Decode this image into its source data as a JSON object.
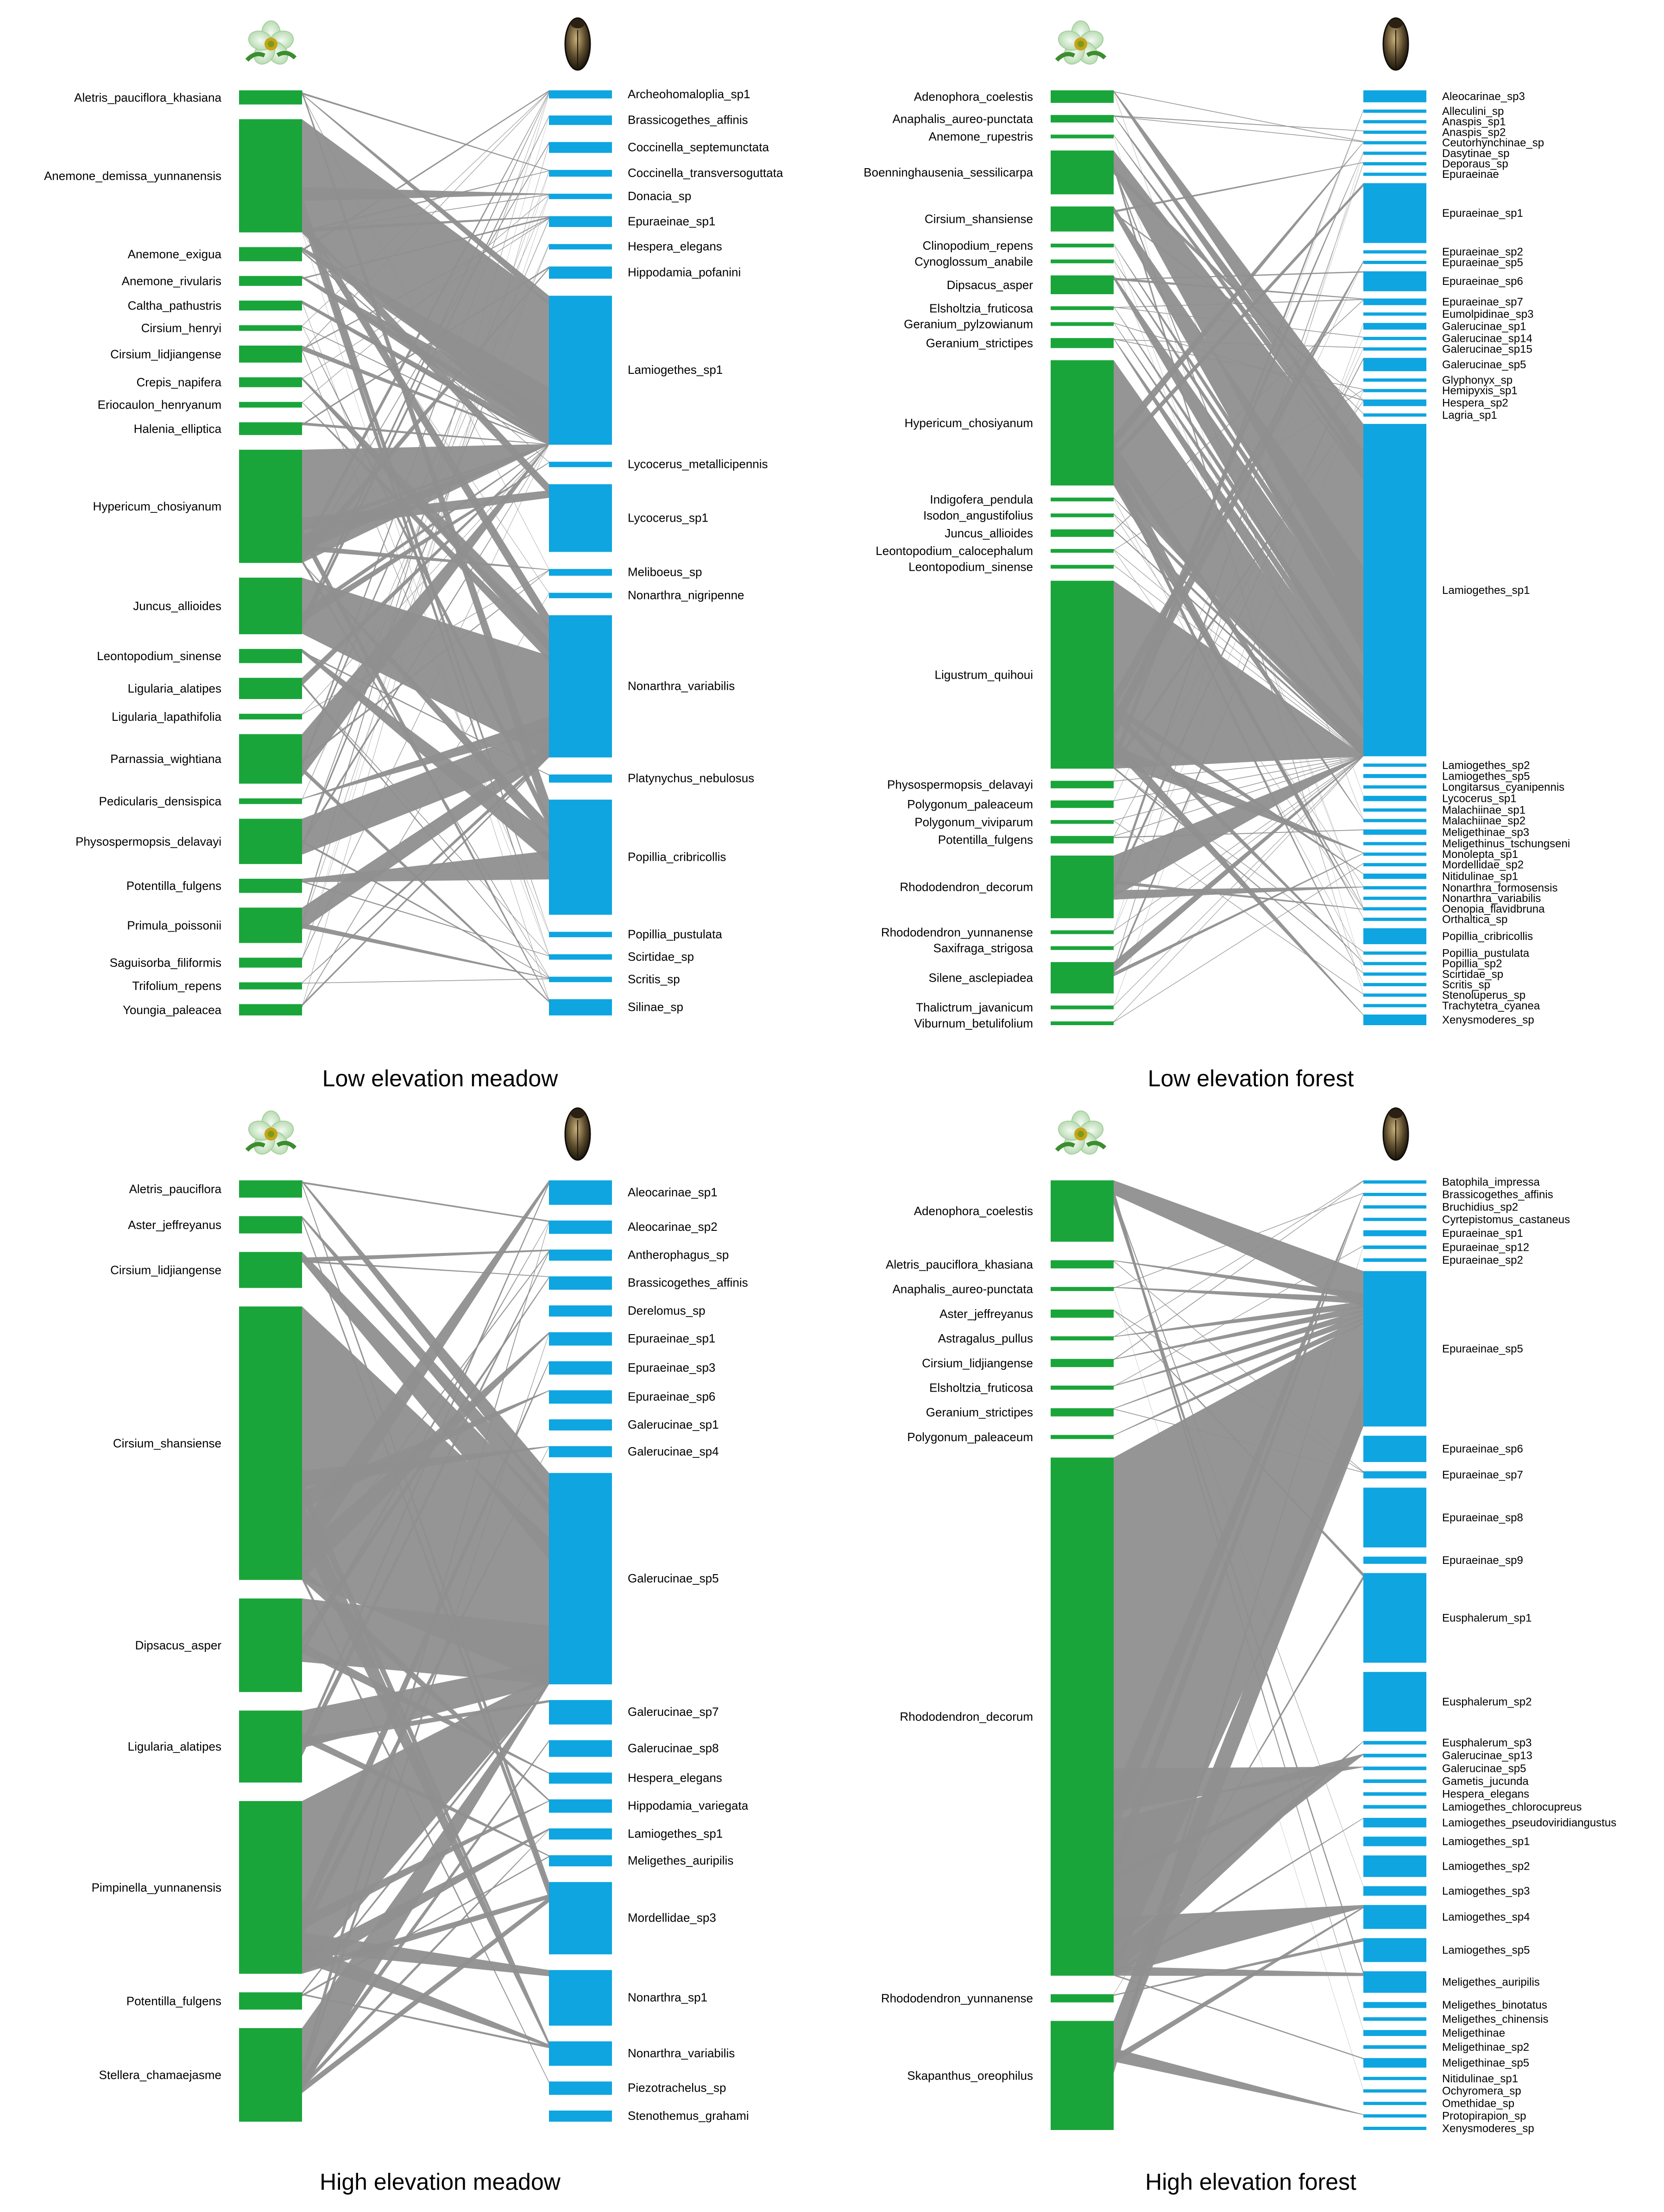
{
  "colors": {
    "plant": "#1aa53a",
    "insect": "#0ea5e0",
    "link": "#8f8f8f"
  },
  "panels": [
    {
      "title": "Low elevation meadow",
      "plants": [
        {
          "name": "Aletris_pauciflora_khasiana",
          "w": 1
        },
        {
          "name": "Anemone_demissa_yunnanensis",
          "w": 8
        },
        {
          "name": "Anemone_exigua",
          "w": 1
        },
        {
          "name": "Anemone_rivularis",
          "w": 0.7
        },
        {
          "name": "Caltha_pathustris",
          "w": 0.7
        },
        {
          "name": "Cirsium_henryi",
          "w": 0.4
        },
        {
          "name": "Cirsium_lidjiangense",
          "w": 1.2
        },
        {
          "name": "Crepis_napifera",
          "w": 0.7
        },
        {
          "name": "Eriocaulon_henryanum",
          "w": 0.4
        },
        {
          "name": "Halenia_elliptica",
          "w": 0.9
        },
        {
          "name": "Hypericum_chosiyanum",
          "w": 8
        },
        {
          "name": "Juncus_allioides",
          "w": 4
        },
        {
          "name": "Leontopodium_sinense",
          "w": 1
        },
        {
          "name": "Ligularia_alatipes",
          "w": 1.5
        },
        {
          "name": "Ligularia_lapathifolia",
          "w": 0.4
        },
        {
          "name": "Parnassia_wightiana",
          "w": 3.5
        },
        {
          "name": "Pedicularis_densispica",
          "w": 0.4
        },
        {
          "name": "Physospermopsis_delavayi",
          "w": 3.2
        },
        {
          "name": "Potentilla_fulgens",
          "w": 1
        },
        {
          "name": "Primula_poissonii",
          "w": 2.5
        },
        {
          "name": "Saguisorba_filiformis",
          "w": 0.7
        },
        {
          "name": "Trifolium_repens",
          "w": 0.5
        },
        {
          "name": "Youngia_paleacea",
          "w": 0.8
        }
      ],
      "insects": [
        {
          "name": "Archeohomaloplia_sp1",
          "w": 0.6
        },
        {
          "name": "Brassicogethes_affinis",
          "w": 0.7
        },
        {
          "name": "Coccinella_septemunctata",
          "w": 0.8
        },
        {
          "name": "Coccinella_transversoguttata",
          "w": 0.5
        },
        {
          "name": "Donacia_sp",
          "w": 0.4
        },
        {
          "name": "Epuraeinae_sp1",
          "w": 0.8
        },
        {
          "name": "Hespera_elegans",
          "w": 0.4
        },
        {
          "name": "Hippodamia_pofanini",
          "w": 0.9
        },
        {
          "name": "Lamiogethes_sp1",
          "w": 11
        },
        {
          "name": "Lycocerus_metallicipennis",
          "w": 0.4
        },
        {
          "name": "Lycocerus_sp1",
          "w": 5
        },
        {
          "name": "Meliboeus_sp",
          "w": 0.5
        },
        {
          "name": "Nonarthra_nigripenne",
          "w": 0.4
        },
        {
          "name": "Nonarthra_variabilis",
          "w": 10.5
        },
        {
          "name": "Platynychus_nebulosus",
          "w": 0.6
        },
        {
          "name": "Popillia_cribricollis",
          "w": 8.5
        },
        {
          "name": "Popillia_pustulata",
          "w": 0.4
        },
        {
          "name": "Scirtidae_sp",
          "w": 0.4
        },
        {
          "name": "Scritis_sp",
          "w": 0.4
        },
        {
          "name": "Silinae_sp",
          "w": 1.2
        }
      ]
    },
    {
      "title": "Low elevation forest",
      "plants": [
        {
          "name": "Adenophora_coelestis",
          "w": 1
        },
        {
          "name": "Anaphalis_aureo-punctata",
          "w": 0.6
        },
        {
          "name": "Anemone_rupestris",
          "w": 0.3
        },
        {
          "name": "Boenninghausenia_sessilicarpa",
          "w": 3.5
        },
        {
          "name": "Cirsium_shansiense",
          "w": 2
        },
        {
          "name": "Clinopodium_repens",
          "w": 0.3
        },
        {
          "name": "Cynoglossum_anabile",
          "w": 0.3
        },
        {
          "name": "Dipsacus_asper",
          "w": 1.5
        },
        {
          "name": "Elsholtzia_fruticosa",
          "w": 0.3
        },
        {
          "name": "Geranium_pylzowianum",
          "w": 0.3
        },
        {
          "name": "Geranium_strictipes",
          "w": 0.8
        },
        {
          "name": "Hypericum_chosiyanum",
          "w": 10
        },
        {
          "name": "Indigofera_pendula",
          "w": 0.3
        },
        {
          "name": "Isodon_angustifolius",
          "w": 0.3
        },
        {
          "name": "Juncus_allioides",
          "w": 0.6
        },
        {
          "name": "Leontopodium_calocephalum",
          "w": 0.3
        },
        {
          "name": "Leontopodium_sinense",
          "w": 0.3
        },
        {
          "name": "Ligustrum_quihoui",
          "w": 15
        },
        {
          "name": "Physospermopsis_delavayi",
          "w": 0.6
        },
        {
          "name": "Polygonum_paleaceum",
          "w": 0.6
        },
        {
          "name": "Polygonum_viviparum",
          "w": 0.3
        },
        {
          "name": "Potentilla_fulgens",
          "w": 0.6
        },
        {
          "name": "Rhododendron_decorum",
          "w": 5
        },
        {
          "name": "Rhododendron_yunnanense",
          "w": 0.3
        },
        {
          "name": "Saxifraga_strigosa",
          "w": 0.3
        },
        {
          "name": "Silene_asclepiadea",
          "w": 2.5
        },
        {
          "name": "Thalictrum_javanicum",
          "w": 0.3
        },
        {
          "name": "Viburnum_betulifolium",
          "w": 0.3
        }
      ],
      "insects": [
        {
          "name": "Aleocarinae_sp3",
          "w": 0.9
        },
        {
          "name": "Alleculini_sp",
          "w": 0.15
        },
        {
          "name": "Anaspis_sp1",
          "w": 0.15
        },
        {
          "name": "Anaspis_sp2",
          "w": 0.15
        },
        {
          "name": "Ceutorhynchinae_sp",
          "w": 0.15
        },
        {
          "name": "Dasytinae_sp",
          "w": 0.15
        },
        {
          "name": "Deporaus_sp",
          "w": 0.15
        },
        {
          "name": "Epuraeinae",
          "w": 0.15
        },
        {
          "name": "Epuraeinae_sp1",
          "w": 4.5
        },
        {
          "name": "Epuraeinae_sp2",
          "w": 0.2
        },
        {
          "name": "Epuraeinae_sp5",
          "w": 0.2
        },
        {
          "name": "Epuraeinae_sp6",
          "w": 1.5
        },
        {
          "name": "Epuraeinae_sp7",
          "w": 0.5
        },
        {
          "name": "Eumolpidinae_sp3",
          "w": 0.2
        },
        {
          "name": "Galerucinae_sp1",
          "w": 0.5
        },
        {
          "name": "Galerucinae_sp14",
          "w": 0.2
        },
        {
          "name": "Galerucinae_sp15",
          "w": 0.2
        },
        {
          "name": "Galerucinae_sp5",
          "w": 1
        },
        {
          "name": "Glyphonyx_sp",
          "w": 0.15
        },
        {
          "name": "Hemipyxis_sp1",
          "w": 0.15
        },
        {
          "name": "Hespera_sp2",
          "w": 0.5
        },
        {
          "name": "Lagria_sp1",
          "w": 0.15
        },
        {
          "name": "Lamiogethes_sp1",
          "w": 25
        },
        {
          "name": "Lamiogethes_sp2",
          "w": 0.2
        },
        {
          "name": "Lamiogethes_sp5",
          "w": 0.3
        },
        {
          "name": "Longitarsus_cyanipennis",
          "w": 0.15
        },
        {
          "name": "Lycocerus_sp1",
          "w": 0.4
        },
        {
          "name": "Malachiinae_sp1",
          "w": 0.15
        },
        {
          "name": "Malachiinae_sp2",
          "w": 0.15
        },
        {
          "name": "Meligethinae_sp3",
          "w": 0.4
        },
        {
          "name": "Meligethinus_tschungseni",
          "w": 0.15
        },
        {
          "name": "Monolepta_sp1",
          "w": 0.15
        },
        {
          "name": "Mordellidae_sp2",
          "w": 0.15
        },
        {
          "name": "Nitidulinae_sp1",
          "w": 0.4
        },
        {
          "name": "Nonarthra_formosensis",
          "w": 0.15
        },
        {
          "name": "Nonarthra_variabilis",
          "w": 0.15
        },
        {
          "name": "Oenopia_flavidbruna",
          "w": 0.15
        },
        {
          "name": "Orthaltica_sp",
          "w": 0.15
        },
        {
          "name": "Popillia_cribricollis",
          "w": 1.2
        },
        {
          "name": "Popillia_pustulata",
          "w": 0.2
        },
        {
          "name": "Popillia_sp2",
          "w": 0.2
        },
        {
          "name": "Scirtidae_sp",
          "w": 0.15
        },
        {
          "name": "Scritis_sp",
          "w": 0.15
        },
        {
          "name": "Stenoluperus_sp",
          "w": 0.15
        },
        {
          "name": "Trachytetra_cyanea",
          "w": 0.15
        },
        {
          "name": "Xenysmoderes_sp",
          "w": 0.8
        }
      ]
    },
    {
      "title": "High elevation meadow",
      "plants": [
        {
          "name": "Aletris_pauciflora",
          "w": 1.2
        },
        {
          "name": "Aster_jeffreyanus",
          "w": 1.2
        },
        {
          "name": "Cirsium_lidjiangense",
          "w": 2.5
        },
        {
          "name": "Cirsium_shansiense",
          "w": 19
        },
        {
          "name": "Dipsacus_asper",
          "w": 6.5
        },
        {
          "name": "Ligularia_alatipes",
          "w": 5
        },
        {
          "name": "Pimpinella_yunnanensis",
          "w": 12
        },
        {
          "name": "Potentilla_fulgens",
          "w": 1.2
        },
        {
          "name": "Stellera_chamaejasme",
          "w": 6.5
        }
      ],
      "insects": [
        {
          "name": "Aleocarinae_sp1",
          "w": 2.2
        },
        {
          "name": "Aleocarinae_sp2",
          "w": 1.2
        },
        {
          "name": "Antherophagus_sp",
          "w": 1
        },
        {
          "name": "Brassicogethes_affinis",
          "w": 1.2
        },
        {
          "name": "Derelomus_sp",
          "w": 1
        },
        {
          "name": "Epuraeinae_sp1",
          "w": 1.2
        },
        {
          "name": "Epuraeinae_sp3",
          "w": 1.2
        },
        {
          "name": "Epuraeinae_sp6",
          "w": 1.2
        },
        {
          "name": "Galerucinae_sp1",
          "w": 1
        },
        {
          "name": "Galerucinae_sp4",
          "w": 1
        },
        {
          "name": "Galerucinae_sp5",
          "w": 19
        },
        {
          "name": "Galerucinae_sp7",
          "w": 2.2
        },
        {
          "name": "Galerucinae_sp8",
          "w": 1.5
        },
        {
          "name": "Hespera_elegans",
          "w": 1
        },
        {
          "name": "Hippodamia_variegata",
          "w": 1.2
        },
        {
          "name": "Lamiogethes_sp1",
          "w": 1
        },
        {
          "name": "Meligethes_auripilis",
          "w": 1
        },
        {
          "name": "Mordellidae_sp3",
          "w": 6.5
        },
        {
          "name": "Nonarthra_sp1",
          "w": 5
        },
        {
          "name": "Nonarthra_variabilis",
          "w": 2.2
        },
        {
          "name": "Piezotrachelus_sp",
          "w": 1.2
        },
        {
          "name": "Stenothemus_grahami",
          "w": 1
        }
      ]
    },
    {
      "title": "High elevation forest",
      "plants": [
        {
          "name": "Adenophora_coelestis",
          "w": 4.5
        },
        {
          "name": "Aletris_pauciflora_khasiana",
          "w": 0.6
        },
        {
          "name": "Anaphalis_aureo-punctata",
          "w": 0.3
        },
        {
          "name": "Aster_jeffreyanus",
          "w": 0.6
        },
        {
          "name": "Astragalus_pullus",
          "w": 0.3
        },
        {
          "name": "Cirsium_lidjiangense",
          "w": 0.6
        },
        {
          "name": "Elsholtzia_fruticosa",
          "w": 0.3
        },
        {
          "name": "Geranium_strictipes",
          "w": 0.6
        },
        {
          "name": "Polygonum_paleaceum",
          "w": 0.3
        },
        {
          "name": "Rhododendron_decorum",
          "w": 38
        },
        {
          "name": "Rhododendron_yunnanense",
          "w": 0.6
        },
        {
          "name": "Skapanthus_oreophilus",
          "w": 8
        }
      ],
      "insects": [
        {
          "name": "Batophila_impressa",
          "w": 0.15
        },
        {
          "name": "Brassicogethes_affinis",
          "w": 0.15
        },
        {
          "name": "Bruchidius_sp2",
          "w": 0.15
        },
        {
          "name": "Cyrtepistomus_castaneus",
          "w": 0.15
        },
        {
          "name": "Epuraeinae_sp1",
          "w": 0.5
        },
        {
          "name": "Epuraeinae_sp12",
          "w": 0.3
        },
        {
          "name": "Epuraeinae_sp2",
          "w": 0.3
        },
        {
          "name": "Epuraeinae_sp5",
          "w": 13
        },
        {
          "name": "Epuraeinae_sp6",
          "w": 2.2
        },
        {
          "name": "Epuraeinae_sp7",
          "w": 0.6
        },
        {
          "name": "Epuraeinae_sp8",
          "w": 5
        },
        {
          "name": "Epuraeinae_sp9",
          "w": 0.6
        },
        {
          "name": "Eusphalerum_sp1",
          "w": 7.5
        },
        {
          "name": "Eusphalerum_sp2",
          "w": 5
        },
        {
          "name": "Eusphalerum_sp3",
          "w": 0.3
        },
        {
          "name": "Galerucinae_sp13",
          "w": 0.3
        },
        {
          "name": "Galerucinae_sp5",
          "w": 0.3
        },
        {
          "name": "Gametis_jucunda",
          "w": 0.3
        },
        {
          "name": "Hespera_elegans",
          "w": 0.3
        },
        {
          "name": "Lamiogethes_chlorocupreus",
          "w": 0.3
        },
        {
          "name": "Lamiogethes_pseudoviridiangustus",
          "w": 0.8
        },
        {
          "name": "Lamiogethes_sp1",
          "w": 0.8
        },
        {
          "name": "Lamiogethes_sp2",
          "w": 1.8
        },
        {
          "name": "Lamiogethes_sp3",
          "w": 0.8
        },
        {
          "name": "Lamiogethes_sp4",
          "w": 2
        },
        {
          "name": "Lamiogethes_sp5",
          "w": 2
        },
        {
          "name": "Meligethes_auripilis",
          "w": 1.8
        },
        {
          "name": "Meligethes_binotatus",
          "w": 0.5
        },
        {
          "name": "Meligethes_chinensis",
          "w": 0.3
        },
        {
          "name": "Meligethinae",
          "w": 0.5
        },
        {
          "name": "Meligethinae_sp2",
          "w": 0.3
        },
        {
          "name": "Meligethinae_sp5",
          "w": 0.8
        },
        {
          "name": "Nitidulinae_sp1",
          "w": 0.2
        },
        {
          "name": "Ochyromera_sp",
          "w": 0.2
        },
        {
          "name": "Omethidae_sp",
          "w": 0.2
        },
        {
          "name": "Protopirapion_sp",
          "w": 0.2
        },
        {
          "name": "Xenysmoderes_sp",
          "w": 0.2
        }
      ]
    }
  ]
}
